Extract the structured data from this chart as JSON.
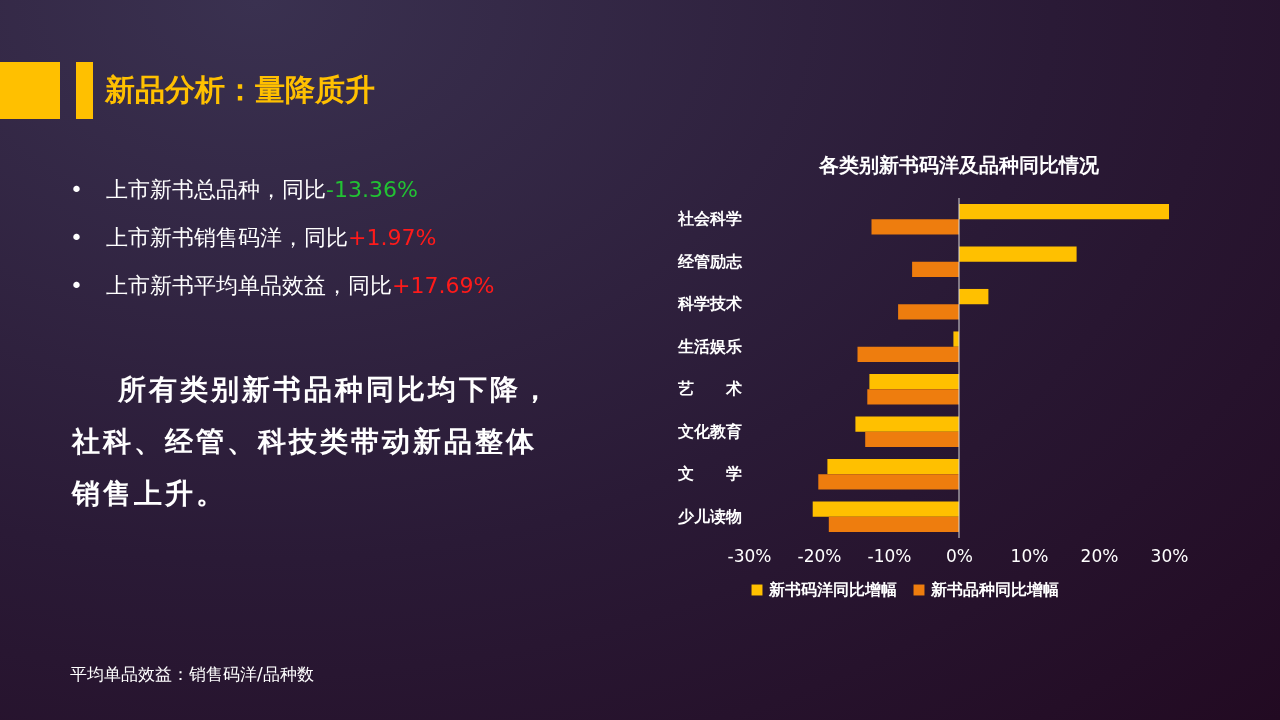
{
  "chart_data": {
    "type": "bar",
    "orientation": "horizontal",
    "title": "新品分析：量降质升",
    "subtitle": "各类别新书码洋及品种同比情况",
    "categories": [
      "社会科学",
      "经管励志",
      "科学技术",
      "生活娱乐",
      "艺　　术",
      "文化教育",
      "文　　学",
      "少儿读物"
    ],
    "series": [
      {
        "name": "新书码洋同比增幅",
        "color": "#ffc000",
        "values": [
          30.0,
          16.8,
          4.2,
          -0.8,
          -12.8,
          -14.8,
          -18.8,
          -20.9
        ]
      },
      {
        "name": "新书品种同比增幅",
        "color": "#ee7d0e",
        "values": [
          -12.5,
          -6.7,
          -8.7,
          -14.5,
          -13.1,
          -13.4,
          -20.1,
          -18.6
        ]
      }
    ],
    "xlim": [
      -30,
      30
    ],
    "xticks": [
      {
        "value": -30,
        "label": "-30%"
      },
      {
        "value": -20,
        "label": "-20%"
      },
      {
        "value": -10,
        "label": "-10%"
      },
      {
        "value": 0,
        "label": "0%"
      },
      {
        "value": 10,
        "label": "10%"
      },
      {
        "value": 20,
        "label": "20%"
      },
      {
        "value": 30,
        "label": "30%"
      }
    ],
    "ref_lines": [
      {
        "axis": "x",
        "value": 0,
        "color": "#d9d9d9"
      }
    ],
    "grid": false,
    "legend": "bottom",
    "annotations": [
      "•上市新书总品种，同比-13.36%",
      "•上市新书销售码洋，同比+1.97%",
      "•上市新书平均单品效益，同比+17.69%",
      "所有类别新书品种同比均下降，社科、经管、科技类带动新品整体销售上升。",
      "平均单品效益：销售码洋/品种数"
    ]
  }
}
